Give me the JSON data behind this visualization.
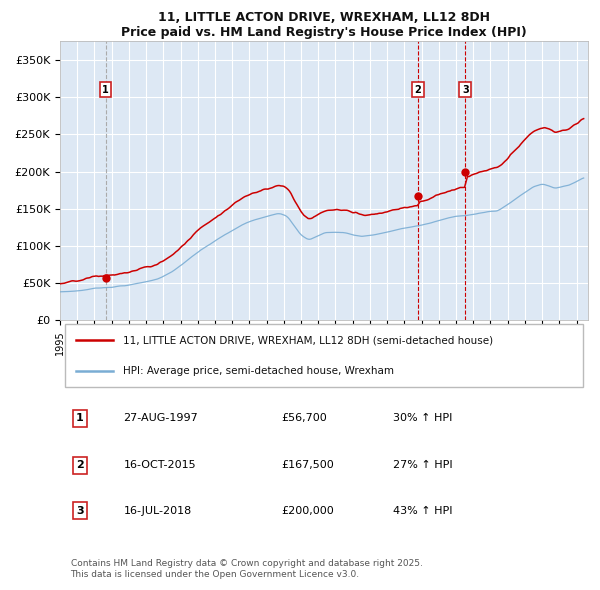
{
  "title": "11, LITTLE ACTON DRIVE, WREXHAM, LL12 8DH",
  "subtitle": "Price paid vs. HM Land Registry's House Price Index (HPI)",
  "legend_line1": "11, LITTLE ACTON DRIVE, WREXHAM, LL12 8DH (semi-detached house)",
  "legend_line2": "HPI: Average price, semi-detached house, Wrexham",
  "sale1_date": "27-AUG-1997",
  "sale1_price": 56700,
  "sale1_hpi_pct": "30% ↑ HPI",
  "sale2_date": "16-OCT-2015",
  "sale2_price": 167500,
  "sale2_hpi_pct": "27% ↑ HPI",
  "sale3_date": "16-JUL-2018",
  "sale3_price": 200000,
  "sale3_hpi_pct": "43% ↑ HPI",
  "hpi_color": "#7aadd4",
  "price_color": "#cc0000",
  "vline1_color": "#aaaaaa",
  "vline23_color": "#cc0000",
  "bg_color": "#dde8f4",
  "grid_color": "#ffffff",
  "ylim": [
    0,
    375000
  ],
  "yticks": [
    0,
    50000,
    100000,
    150000,
    200000,
    250000,
    300000,
    350000
  ],
  "ytick_labels": [
    "£0",
    "£50K",
    "£100K",
    "£150K",
    "£200K",
    "£250K",
    "£300K",
    "£350K"
  ],
  "footer": "Contains HM Land Registry data © Crown copyright and database right 2025.\nThis data is licensed under the Open Government Licence v3.0."
}
